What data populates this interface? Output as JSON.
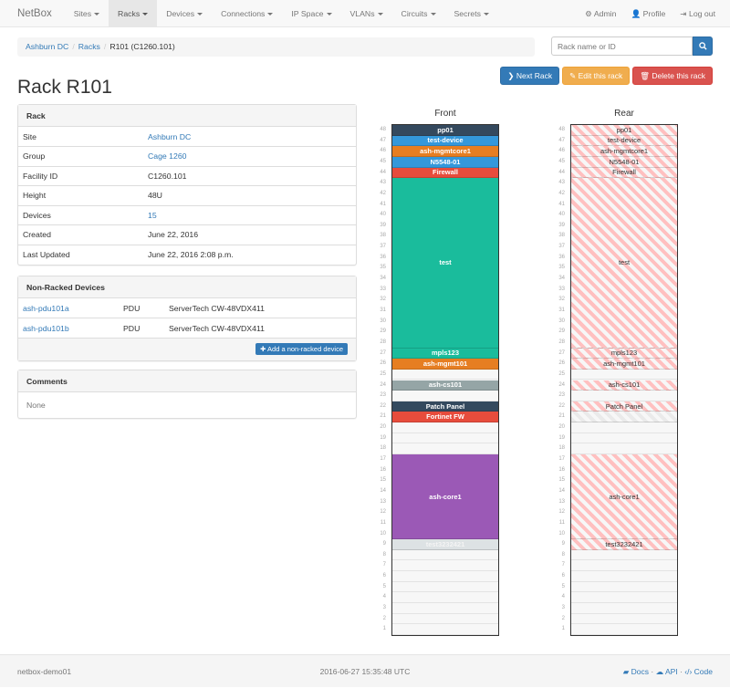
{
  "nav": {
    "brand": "NetBox",
    "items": [
      "Sites",
      "Racks",
      "Devices",
      "Connections",
      "IP Space",
      "VLANs",
      "Circuits",
      "Secrets"
    ],
    "active": "Racks",
    "right": [
      {
        "icon": "gear-icon",
        "label": "Admin"
      },
      {
        "icon": "user-icon",
        "label": "Profile"
      },
      {
        "icon": "logout-icon",
        "label": "Log out"
      }
    ]
  },
  "breadcrumb": [
    "Ashburn DC",
    "Racks",
    "R101 (C1260.101)"
  ],
  "search": {
    "placeholder": "Rack name or ID"
  },
  "actions": {
    "next": "Next Rack",
    "edit": "Edit this rack",
    "delete": "Delete this rack"
  },
  "title": "Rack R101",
  "rack_panel": {
    "heading": "Rack",
    "rows": [
      {
        "k": "Site",
        "v": "Ashburn DC",
        "link": true
      },
      {
        "k": "Group",
        "v": "Cage 1260",
        "link": true
      },
      {
        "k": "Facility ID",
        "v": "C1260.101"
      },
      {
        "k": "Height",
        "v": "48U"
      },
      {
        "k": "Devices",
        "v": "15",
        "link": true
      },
      {
        "k": "Created",
        "v": "June 22, 2016"
      },
      {
        "k": "Last Updated",
        "v": "June 22, 2016 2:08 p.m."
      }
    ]
  },
  "nonracked": {
    "heading": "Non-Racked Devices",
    "rows": [
      [
        "ash-pdu101a",
        "PDU",
        "ServerTech CW-48VDX411"
      ],
      [
        "ash-pdu101b",
        "PDU",
        "ServerTech CW-48VDX411"
      ]
    ],
    "add": "Add a non-racked device"
  },
  "comments": {
    "heading": "Comments",
    "body": "None"
  },
  "elevation": {
    "front_title": "Front",
    "rear_title": "Rear",
    "units": 48,
    "devices": [
      {
        "name": "pp01",
        "top": 48,
        "size": 1,
        "color": "#34495e"
      },
      {
        "name": "test-device",
        "top": 47,
        "size": 1,
        "color": "#3498db"
      },
      {
        "name": "ash-mgmtcore1",
        "top": 46,
        "size": 1,
        "color": "#e67e22"
      },
      {
        "name": "N5548-01",
        "top": 45,
        "size": 1,
        "color": "#3498db"
      },
      {
        "name": "Firewall",
        "top": 44,
        "size": 1,
        "color": "#e74c3c"
      },
      {
        "name": "test",
        "top": 43,
        "size": 16,
        "color": "#1abc9c"
      },
      {
        "name": "mpls123",
        "top": 27,
        "size": 1,
        "color": "#1abc9c"
      },
      {
        "name": "ash-mgmt101",
        "top": 26,
        "size": 1,
        "color": "#e67e22"
      },
      {
        "name": "ash-cs101",
        "top": 24,
        "size": 1,
        "color": "#95a5a6"
      },
      {
        "name": "Patch Panel",
        "top": 22,
        "size": 1,
        "color": "#34495e"
      },
      {
        "name": "Fortinet FW",
        "top": 21,
        "size": 1,
        "color": "#e74c3c",
        "half_depth": true
      },
      {
        "name": "ash-core1",
        "top": 17,
        "size": 8,
        "color": "#9b59b6"
      },
      {
        "name": "test3232421",
        "top": 9,
        "size": 1,
        "color": "#dde2e4"
      }
    ]
  },
  "footer": {
    "host": "netbox-demo01",
    "time": "2016-06-27 15:35:48 UTC",
    "links": [
      "Docs",
      "API",
      "Code"
    ]
  }
}
